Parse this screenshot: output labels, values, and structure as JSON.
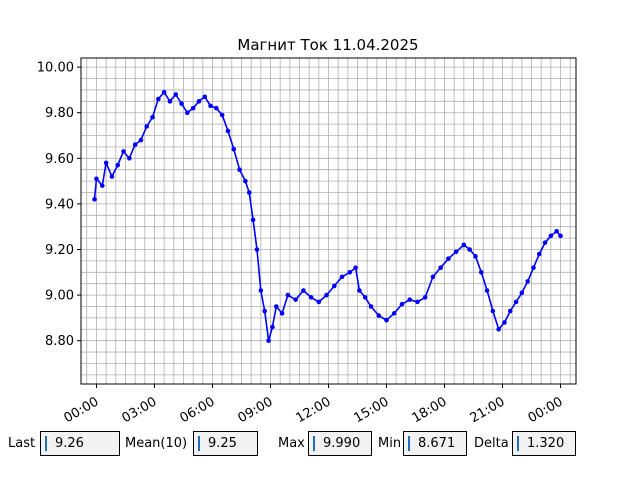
{
  "colors": {
    "series": "#0000ff",
    "grid": "#b0b0b0"
  },
  "stats": {
    "last": {
      "label": "Last",
      "value": "9.26"
    },
    "mean": {
      "label": "Mean(10)",
      "value": "9.25"
    },
    "max": {
      "label": "Max",
      "value": "9.990"
    },
    "min": {
      "label": "Min",
      "value": "8.671"
    },
    "delta": {
      "label": "Delta",
      "value": "1.320"
    }
  },
  "chart_data": {
    "type": "line",
    "title": "Магнит Ток 11.04.2025",
    "xlabel": "",
    "ylabel": "",
    "x_unit": "hours since 00:00",
    "xlim": [
      -0.8,
      24.8
    ],
    "ylim": [
      8.61,
      10.04
    ],
    "xticks": [
      {
        "v": 0,
        "label": "00:00"
      },
      {
        "v": 3,
        "label": "03:00"
      },
      {
        "v": 6,
        "label": "06:00"
      },
      {
        "v": 9,
        "label": "09:00"
      },
      {
        "v": 12,
        "label": "12:00"
      },
      {
        "v": 15,
        "label": "15:00"
      },
      {
        "v": 18,
        "label": "18:00"
      },
      {
        "v": 21,
        "label": "21:00"
      },
      {
        "v": 24,
        "label": "00:00"
      }
    ],
    "yticks": [
      {
        "v": 8.8,
        "label": "8.80"
      },
      {
        "v": 9.0,
        "label": "9.00"
      },
      {
        "v": 9.2,
        "label": "9.20"
      },
      {
        "v": 9.4,
        "label": "9.40"
      },
      {
        "v": 9.6,
        "label": "9.60"
      },
      {
        "v": 9.8,
        "label": "9.80"
      },
      {
        "v": 10.0,
        "label": "10.00"
      }
    ],
    "grid": true,
    "series": [
      {
        "values": [
          [
            -0.1,
            9.42
          ],
          [
            0.0,
            9.51
          ],
          [
            0.3,
            9.48
          ],
          [
            0.5,
            9.58
          ],
          [
            0.8,
            9.52
          ],
          [
            1.1,
            9.57
          ],
          [
            1.4,
            9.63
          ],
          [
            1.7,
            9.6
          ],
          [
            2.0,
            9.66
          ],
          [
            2.3,
            9.68
          ],
          [
            2.6,
            9.74
          ],
          [
            2.9,
            9.78
          ],
          [
            3.2,
            9.86
          ],
          [
            3.5,
            9.89
          ],
          [
            3.8,
            9.85
          ],
          [
            4.1,
            9.88
          ],
          [
            4.4,
            9.84
          ],
          [
            4.7,
            9.8
          ],
          [
            5.0,
            9.82
          ],
          [
            5.3,
            9.85
          ],
          [
            5.6,
            9.87
          ],
          [
            5.9,
            9.83
          ],
          [
            6.2,
            9.82
          ],
          [
            6.5,
            9.79
          ],
          [
            6.8,
            9.72
          ],
          [
            7.1,
            9.64
          ],
          [
            7.4,
            9.55
          ],
          [
            7.7,
            9.5
          ],
          [
            7.9,
            9.45
          ],
          [
            8.1,
            9.33
          ],
          [
            8.3,
            9.2
          ],
          [
            8.5,
            9.02
          ],
          [
            8.7,
            8.93
          ],
          [
            8.9,
            8.8
          ],
          [
            9.1,
            8.86
          ],
          [
            9.3,
            8.95
          ],
          [
            9.6,
            8.92
          ],
          [
            9.9,
            9.0
          ],
          [
            10.3,
            8.98
          ],
          [
            10.7,
            9.02
          ],
          [
            11.1,
            8.99
          ],
          [
            11.5,
            8.97
          ],
          [
            11.9,
            9.0
          ],
          [
            12.3,
            9.04
          ],
          [
            12.7,
            9.08
          ],
          [
            13.1,
            9.1
          ],
          [
            13.4,
            9.12
          ],
          [
            13.6,
            9.02
          ],
          [
            13.9,
            8.99
          ],
          [
            14.2,
            8.95
          ],
          [
            14.6,
            8.91
          ],
          [
            15.0,
            8.89
          ],
          [
            15.4,
            8.92
          ],
          [
            15.8,
            8.96
          ],
          [
            16.2,
            8.98
          ],
          [
            16.6,
            8.97
          ],
          [
            17.0,
            8.99
          ],
          [
            17.4,
            9.08
          ],
          [
            17.8,
            9.12
          ],
          [
            18.2,
            9.16
          ],
          [
            18.6,
            9.19
          ],
          [
            19.0,
            9.22
          ],
          [
            19.3,
            9.2
          ],
          [
            19.6,
            9.17
          ],
          [
            19.9,
            9.1
          ],
          [
            20.2,
            9.02
          ],
          [
            20.5,
            8.93
          ],
          [
            20.8,
            8.85
          ],
          [
            21.1,
            8.88
          ],
          [
            21.4,
            8.93
          ],
          [
            21.7,
            8.97
          ],
          [
            22.0,
            9.01
          ],
          [
            22.3,
            9.06
          ],
          [
            22.6,
            9.12
          ],
          [
            22.9,
            9.18
          ],
          [
            23.2,
            9.23
          ],
          [
            23.5,
            9.26
          ],
          [
            23.8,
            9.28
          ],
          [
            24.0,
            9.26
          ]
        ]
      }
    ]
  }
}
